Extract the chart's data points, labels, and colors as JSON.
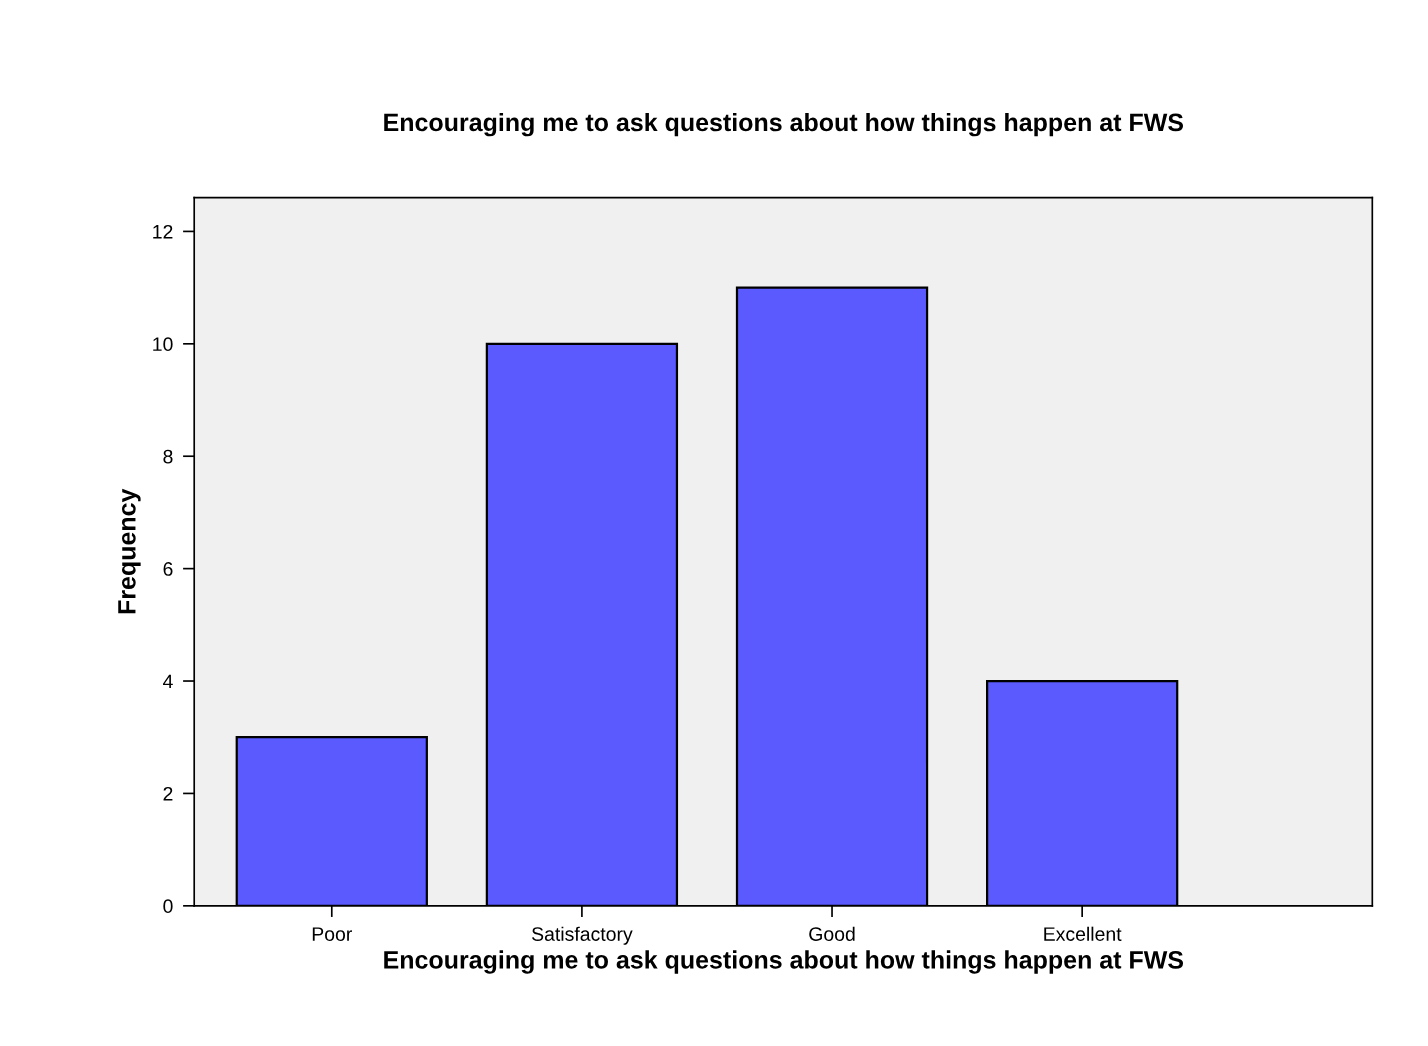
{
  "chart_data": {
    "type": "bar",
    "title": "Encouraging me to ask questions about how things happen at FWS",
    "xlabel": "Encouraging me to ask questions about how things happen at FWS",
    "ylabel": "Frequency",
    "categories": [
      "Poor",
      "Satisfactory",
      "Good",
      "Excellent"
    ],
    "values": [
      3,
      10,
      11,
      4
    ],
    "color": "#5a5aff",
    "ylim": [
      0,
      12.6
    ],
    "yticks": [
      0,
      2,
      4,
      6,
      8,
      10,
      12
    ],
    "grid": false,
    "legend": false
  }
}
